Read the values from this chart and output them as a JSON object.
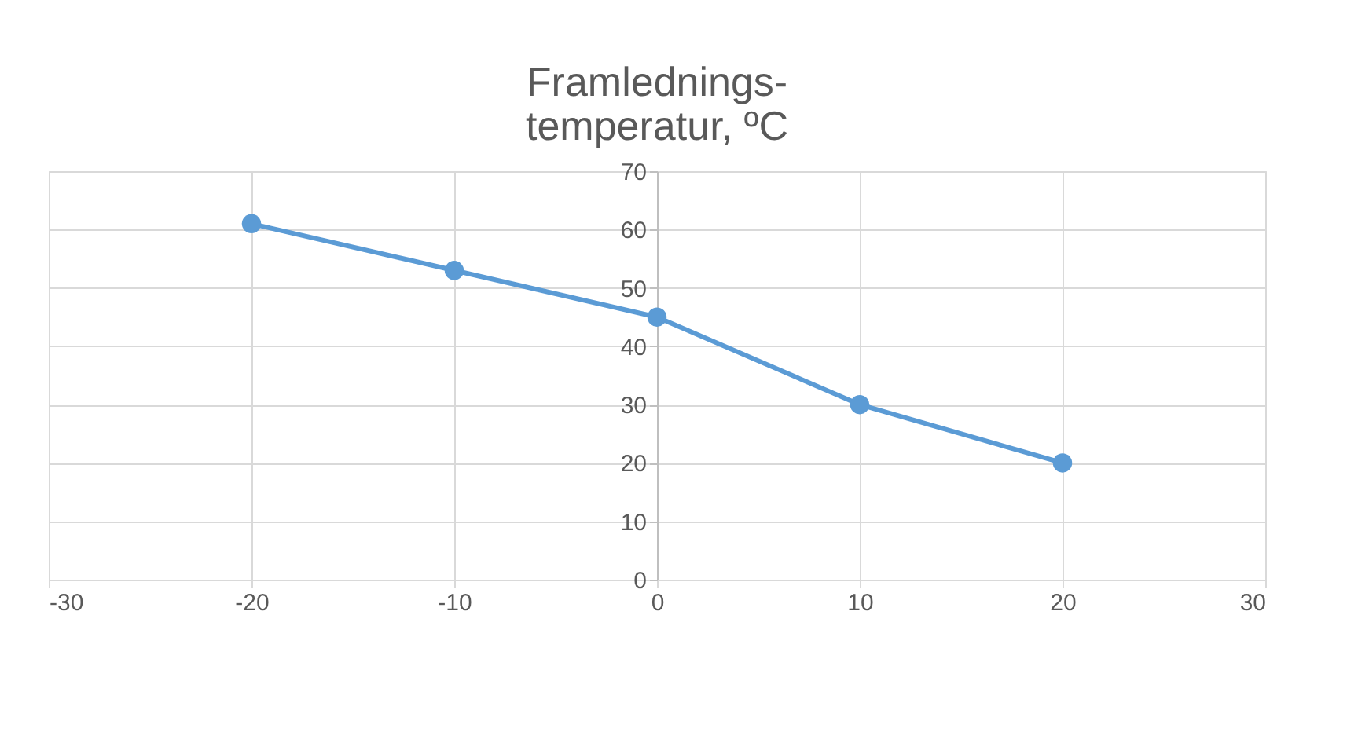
{
  "chart_data": {
    "type": "line",
    "title": "Framlednings-\ntemperatur, ºC",
    "x": [
      -20,
      -10,
      0,
      10,
      20
    ],
    "series": [
      {
        "color": "#5b9bd5",
        "values": [
          61,
          53,
          45,
          30,
          20
        ]
      }
    ],
    "xlim": [
      -30,
      30
    ],
    "xticks": [
      -30,
      -20,
      -10,
      0,
      10,
      20,
      30
    ],
    "ylim": [
      0,
      70
    ],
    "yticks": [
      0,
      10,
      20,
      30,
      40,
      50,
      60,
      70
    ],
    "grid": true,
    "marker": "circle",
    "line_style": "solid"
  }
}
